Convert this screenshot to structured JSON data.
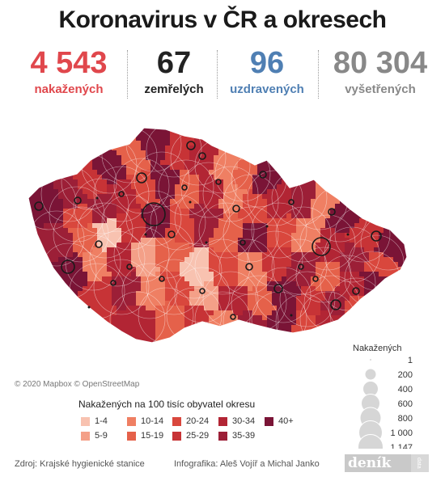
{
  "title": "Koronavirus v ČR a okresech",
  "stats": [
    {
      "value": "4 543",
      "label": "nakažených",
      "color": "#e0474c"
    },
    {
      "value": "67",
      "label": "zemřelých",
      "color": "#222222"
    },
    {
      "value": "96",
      "label": "uzdravených",
      "color": "#4f7fb3"
    },
    {
      "value": "80 304",
      "label": "vyšetřených",
      "color": "#888888"
    }
  ],
  "map_credit": "© 2020 Mapbox © OpenStreetMap",
  "choropleth_legend": {
    "title": "Nakažených na 100 tisíc obyvatel okresu",
    "classes": [
      {
        "label": "1-4",
        "color": "#f8c2b0"
      },
      {
        "label": "5-9",
        "color": "#f4a088"
      },
      {
        "label": "10-14",
        "color": "#ef7f63"
      },
      {
        "label": "15-19",
        "color": "#e5614a"
      },
      {
        "label": "20-24",
        "color": "#d9473d"
      },
      {
        "label": "25-29",
        "color": "#c73336"
      },
      {
        "label": "30-34",
        "color": "#b22534"
      },
      {
        "label": "35-39",
        "color": "#9c1f37"
      },
      {
        "label": "40+",
        "color": "#7a1436"
      }
    ]
  },
  "size_legend": {
    "title": "Nakažených",
    "values": [
      "1",
      "200",
      "400",
      "600",
      "800",
      "1 000",
      "1 147"
    ]
  },
  "footer": {
    "source": "Zdroj: Krajské hygienické stanice",
    "credits": "Infografika: Aleš Vojíř a Michal Janko",
    "logo": "deník",
    "logo_sub": "data"
  }
}
